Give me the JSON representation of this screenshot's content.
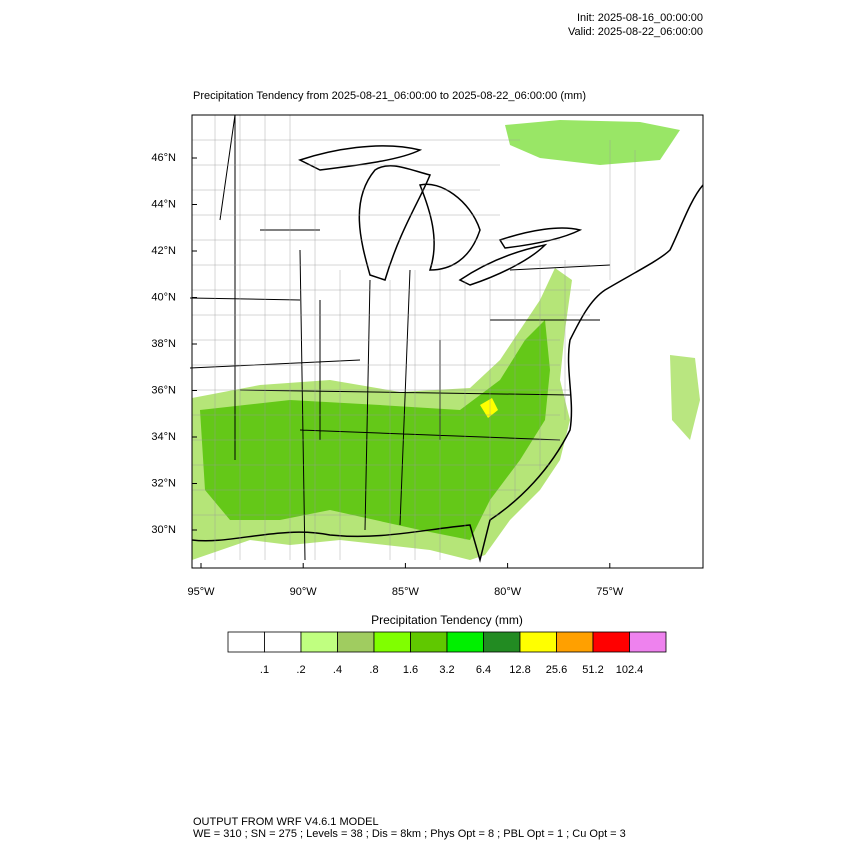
{
  "header": {
    "init": "Init: 2025-08-16_00:00:00",
    "valid": "Valid: 2025-08-22_06:00:00"
  },
  "map": {
    "title": "Precipitation Tendency from 2025-08-21_06:00:00 to 2025-08-22_06:00:00   (mm)",
    "lat_labels": [
      "46°N",
      "44°N",
      "42°N",
      "40°N",
      "38°N",
      "36°N",
      "34°N",
      "32°N",
      "30°N"
    ],
    "lon_labels": [
      "95°W",
      "90°W",
      "85°W",
      "80°W",
      "75°W"
    ]
  },
  "colorbar": {
    "title": "Precipitation Tendency  (mm)",
    "colors": [
      "#ffffff",
      "#ffffff",
      "#c0ff80",
      "#a0cc60",
      "#80ff00",
      "#60c800",
      "#00f000",
      "#228b22",
      "#ffff00",
      "#ffa000",
      "#ff0000",
      "#ee82ee"
    ],
    "levels": [
      ".1",
      ".2",
      ".4",
      ".8",
      "1.6",
      "3.2",
      "6.4",
      "12.8",
      "25.6",
      "51.2",
      "102.4"
    ]
  },
  "footer": {
    "line1": "OUTPUT FROM WRF V4.6.1 MODEL",
    "line2": "WE = 310 ; SN = 275 ; Levels = 38 ; Dis = 8km ; Phys Opt = 8 ; PBL Opt = 1 ; Cu Opt = 3"
  }
}
